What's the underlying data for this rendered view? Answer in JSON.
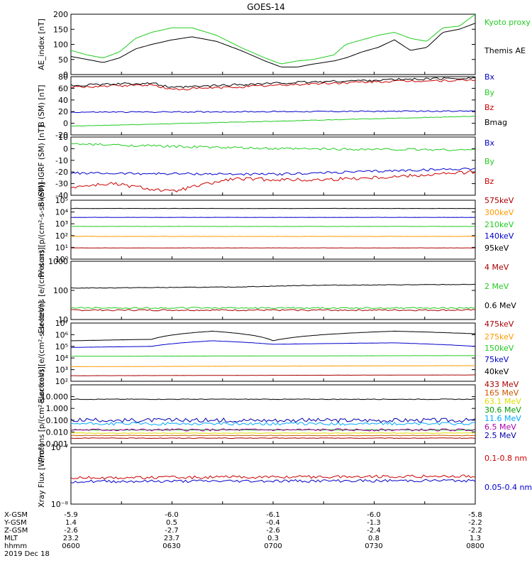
{
  "title": "GOES-14",
  "colors": {
    "black": "#000000",
    "red": "#cc0000",
    "green": "#22cc22",
    "blue": "#0000cc",
    "orange": "#ff9900",
    "cyan": "#00aaff",
    "yellow": "#dddd00",
    "purple": "#aa00aa",
    "maroon": "#aa0000",
    "darkorange": "#cc5500",
    "forest": "#009900",
    "navy": "#0000aa"
  },
  "x_ticks": [
    "0600",
    "0630",
    "0700",
    "0730",
    "0800"
  ],
  "ephemeris": {
    "rows": [
      {
        "label": "X-GSM",
        "values": [
          "-5.9",
          "-6.0",
          "-6.1",
          "-6.0",
          "-5.8"
        ]
      },
      {
        "label": "Y-GSM",
        "values": [
          "1.4",
          "0.5",
          "-0.4",
          "-1.3",
          "-2.2"
        ]
      },
      {
        "label": "Z-GSM",
        "values": [
          "-2.6",
          "-2.7",
          "-2.6",
          "-2.4",
          "-2.2"
        ]
      },
      {
        "label": "MLT",
        "values": [
          "23.2",
          "23.7",
          "0.3",
          "0.8",
          "1.3"
        ]
      },
      {
        "label": "hhmm",
        "values": [
          "0600",
          "0630",
          "0700",
          "0730",
          "0800"
        ]
      }
    ],
    "date": "2019 Dec 18"
  },
  "chart_data": [
    {
      "type": "line",
      "ylabel": "AE_index [nT]",
      "ylim": [
        0,
        200
      ],
      "scale": "linear",
      "yticks": [
        {
          "v": 0,
          "l": "0"
        },
        {
          "v": 50,
          "l": "50"
        },
        {
          "v": 100,
          "l": "100"
        },
        {
          "v": 150,
          "l": "150"
        },
        {
          "v": 200,
          "l": "200"
        }
      ],
      "series": [
        {
          "name": "Kyoto proxy AE",
          "color": "green",
          "x": [
            0,
            0.04,
            0.08,
            0.12,
            0.16,
            0.2,
            0.25,
            0.3,
            0.36,
            0.42,
            0.48,
            0.52,
            0.56,
            0.6,
            0.65,
            0.68,
            0.72,
            0.76,
            0.8,
            0.84,
            0.88,
            0.92,
            0.96,
            1.0
          ],
          "y": [
            80,
            65,
            55,
            75,
            120,
            140,
            155,
            155,
            130,
            90,
            55,
            35,
            45,
            50,
            65,
            100,
            115,
            130,
            140,
            120,
            110,
            155,
            160,
            200
          ]
        },
        {
          "name": "Themis AE",
          "color": "black",
          "x": [
            0,
            0.04,
            0.08,
            0.12,
            0.16,
            0.2,
            0.25,
            0.3,
            0.36,
            0.42,
            0.48,
            0.52,
            0.56,
            0.6,
            0.65,
            0.68,
            0.72,
            0.76,
            0.8,
            0.84,
            0.88,
            0.92,
            0.96,
            1.0
          ],
          "y": [
            60,
            50,
            40,
            55,
            85,
            100,
            115,
            125,
            110,
            80,
            45,
            25,
            25,
            35,
            45,
            55,
            75,
            90,
            115,
            80,
            90,
            140,
            150,
            170
          ]
        }
      ]
    },
    {
      "type": "line",
      "ylabel": "B (SM) [nT]",
      "ylim": [
        -20,
        80
      ],
      "scale": "linear",
      "yticks": [
        {
          "v": -20,
          "l": "-20"
        },
        {
          "v": 0,
          "l": "0"
        },
        {
          "v": 20,
          "l": "20"
        },
        {
          "v": 40,
          "l": "40"
        },
        {
          "v": 60,
          "l": "60"
        },
        {
          "v": 80,
          "l": "80"
        }
      ],
      "series": [
        {
          "name": "Bx",
          "color": "blue",
          "x": [
            0,
            1
          ],
          "y": [
            19,
            21
          ],
          "noise": 1
        },
        {
          "name": "By",
          "color": "green",
          "x": [
            0,
            1
          ],
          "y": [
            -5,
            12
          ],
          "noise": 0.5
        },
        {
          "name": "Bz",
          "color": "red",
          "x": [
            0,
            0.2,
            0.25,
            0.4,
            0.6,
            0.8,
            1.0
          ],
          "y": [
            62,
            66,
            58,
            62,
            68,
            72,
            74
          ],
          "noise": 2
        },
        {
          "name": "Bmag",
          "color": "black",
          "x": [
            0,
            0.2,
            0.25,
            0.4,
            0.6,
            0.8,
            1.0
          ],
          "y": [
            65,
            69,
            61,
            66,
            71,
            75,
            78
          ],
          "noise": 2
        }
      ]
    },
    {
      "type": "line",
      "ylabel": "B (SM)-IGRF (SM) [nT]",
      "ylim": [
        -40,
        10
      ],
      "scale": "linear",
      "yticks": [
        {
          "v": -40,
          "l": "-40"
        },
        {
          "v": -30,
          "l": "-30"
        },
        {
          "v": -20,
          "l": "-20"
        },
        {
          "v": -10,
          "l": "-10"
        },
        {
          "v": 0,
          "l": "0"
        },
        {
          "v": 10,
          "l": "10"
        }
      ],
      "series": [
        {
          "name": "Bx",
          "color": "blue",
          "x": [
            0,
            0.5,
            1.0
          ],
          "y": [
            -21,
            -22,
            -17
          ],
          "noise": 1
        },
        {
          "name": "By",
          "color": "green",
          "x": [
            0,
            0.5,
            1.0
          ],
          "y": [
            4,
            0,
            -1
          ],
          "noise": 1
        },
        {
          "name": "Bz",
          "color": "red",
          "x": [
            0,
            0.1,
            0.25,
            0.3,
            0.4,
            0.6,
            0.8,
            1.0
          ],
          "y": [
            -33,
            -30,
            -37,
            -33,
            -26,
            -27,
            -24,
            -20
          ],
          "noise": 1.5
        }
      ]
    },
    {
      "type": "line",
      "ylabel": "Protons [p/(cm²-s-sr-keV)]",
      "ylim": [
        1,
        100000
      ],
      "scale": "log",
      "yticks": [
        {
          "v": 1,
          "l": "10⁰"
        },
        {
          "v": 10,
          "l": "10¹"
        },
        {
          "v": 100,
          "l": "10²"
        },
        {
          "v": 1000,
          "l": "10³"
        },
        {
          "v": 10000,
          "l": "10⁴"
        },
        {
          "v": 100000,
          "l": "10⁵"
        }
      ],
      "series": [
        {
          "name": "575keV",
          "color": "maroon",
          "x": [
            0,
            1
          ],
          "y": [
            9,
            9
          ],
          "noise": 0.02
        },
        {
          "name": "300keV",
          "color": "orange",
          "x": [
            0,
            1
          ],
          "y": [
            85,
            85
          ],
          "noise": 0.02
        },
        {
          "name": "210keV",
          "color": "green",
          "x": [
            0,
            1
          ],
          "y": [
            600,
            600
          ],
          "noise": 0.02
        },
        {
          "name": "140keV",
          "color": "blue",
          "x": [
            0,
            1
          ],
          "y": [
            3500,
            3500
          ],
          "noise": 0.02
        },
        {
          "name": "95keV",
          "color": "black",
          "x": [
            0,
            1
          ],
          "y": [
            20000,
            20000
          ],
          "noise": 0.02
        }
      ]
    },
    {
      "type": "line",
      "ylabel": "Electrons [e/(cm²-s-sr)]",
      "ylim": [
        10,
        1000
      ],
      "scale": "log",
      "yticks": [
        {
          "v": 10,
          "l": "10"
        },
        {
          "v": 100,
          "l": "100"
        },
        {
          "v": 1000,
          "l": "1000"
        }
      ],
      "series": [
        {
          "name": "4 MeV",
          "color": "maroon",
          "x": [
            0,
            1
          ],
          "y": [
            21,
            21
          ],
          "noise": 0.05
        },
        {
          "name": "2 MeV",
          "color": "green",
          "x": [
            0,
            1
          ],
          "y": [
            25,
            25
          ],
          "noise": 0.05
        },
        {
          "name": "0.6 MeV",
          "color": "black",
          "x": [
            0,
            0.4,
            0.6,
            1.0
          ],
          "y": [
            120,
            130,
            150,
            160
          ],
          "noise": 0.02
        }
      ]
    },
    {
      "type": "line",
      "ylabel": "Electrons [e/(cm²-s-sr-keV)]",
      "ylim": [
        100,
        10000000
      ],
      "scale": "log",
      "yticks": [
        {
          "v": 100,
          "l": "10²"
        },
        {
          "v": 1000,
          "l": "10³"
        },
        {
          "v": 10000,
          "l": "10⁴"
        },
        {
          "v": 100000,
          "l": "10⁵"
        },
        {
          "v": 1000000,
          "l": "10⁶"
        },
        {
          "v": 10000000,
          "l": "10⁷"
        }
      ],
      "series": [
        {
          "name": "475keV",
          "color": "maroon",
          "x": [
            0,
            1
          ],
          "y": [
            300,
            350
          ],
          "noise": 0.01
        },
        {
          "name": "275keV",
          "color": "orange",
          "x": [
            0,
            1
          ],
          "y": [
            1800,
            2200
          ],
          "noise": 0.01
        },
        {
          "name": "150keV",
          "color": "green",
          "x": [
            0,
            1
          ],
          "y": [
            14000,
            16000
          ],
          "noise": 0.01
        },
        {
          "name": "75keV",
          "color": "blue",
          "x": [
            0,
            0.2,
            0.35,
            0.5,
            0.8,
            1.0
          ],
          "y": [
            80000,
            100000,
            300000,
            150000,
            200000,
            100000
          ],
          "noise": 0.01
        },
        {
          "name": "40keV",
          "color": "black",
          "x": [
            0,
            0.2,
            0.35,
            0.5,
            0.8,
            1.0
          ],
          "y": [
            300000,
            400000,
            2000000,
            300000,
            2000000,
            1200000
          ],
          "noise": 0.01
        }
      ]
    },
    {
      "type": "line",
      "ylabel": "Protons [p/(cm²-s-sr-keV)]",
      "ylim": [
        0.001,
        100
      ],
      "scale": "log",
      "yticks": [
        {
          "v": 0.001,
          "l": "0.001"
        },
        {
          "v": 0.01,
          "l": "0.010"
        },
        {
          "v": 0.1,
          "l": "0.100"
        },
        {
          "v": 1,
          "l": "1.000"
        },
        {
          "v": 10,
          "l": "10.000"
        }
      ],
      "series": [
        {
          "name": "433 MeV",
          "color": "maroon",
          "x": [
            0,
            1
          ],
          "y": [
            0.003,
            0.003
          ],
          "noise": 0.05
        },
        {
          "name": "165 MeV",
          "color": "darkorange",
          "x": [
            0,
            1
          ],
          "y": [
            0.005,
            0.005
          ],
          "noise": 0.05
        },
        {
          "name": "63.1 MeV",
          "color": "yellow",
          "x": [
            0,
            1
          ],
          "y": [
            0.008,
            0.008
          ],
          "noise": 0.05
        },
        {
          "name": "30.6 MeV",
          "color": "forest",
          "x": [
            0,
            1
          ],
          "y": [
            0.015,
            0.015
          ],
          "noise": 0.05
        },
        {
          "name": "11.6 MeV",
          "color": "cyan",
          "x": [
            0,
            1
          ],
          "y": [
            0.05,
            0.05
          ],
          "noise": 0.25
        },
        {
          "name": "6.5 MeV",
          "color": "purple",
          "x": [
            0,
            1
          ],
          "y": [
            0.015,
            0.015
          ],
          "noise": 0.2
        },
        {
          "name": "2.5 MeV",
          "color": "navy",
          "x": [
            0,
            1
          ],
          "y": [
            0.1,
            0.1
          ],
          "noise": 0.35
        },
        {
          "name": "",
          "color": "black",
          "x": [
            0,
            1
          ],
          "y": [
            6,
            6
          ],
          "noise": 0.05
        }
      ]
    },
    {
      "type": "line",
      "ylabel": "Xray Flux [W/m²]",
      "ylim": [
        1e-08,
        1e-07
      ],
      "scale": "log",
      "yticks": [
        {
          "v": 1e-08,
          "l": "10⁻⁸"
        },
        {
          "v": 1e-07,
          "l": "10⁻⁷"
        }
      ],
      "series": [
        {
          "name": "0.1-0.8 nm",
          "color": "red",
          "x": [
            0,
            1
          ],
          "y": [
            2.9e-08,
            3.1e-08
          ],
          "noise": 0.05
        },
        {
          "name": "0.05-0.4 nm",
          "color": "blue",
          "x": [
            0,
            1
          ],
          "y": [
            2.5e-08,
            2.6e-08
          ],
          "noise": 0.05
        }
      ]
    }
  ]
}
